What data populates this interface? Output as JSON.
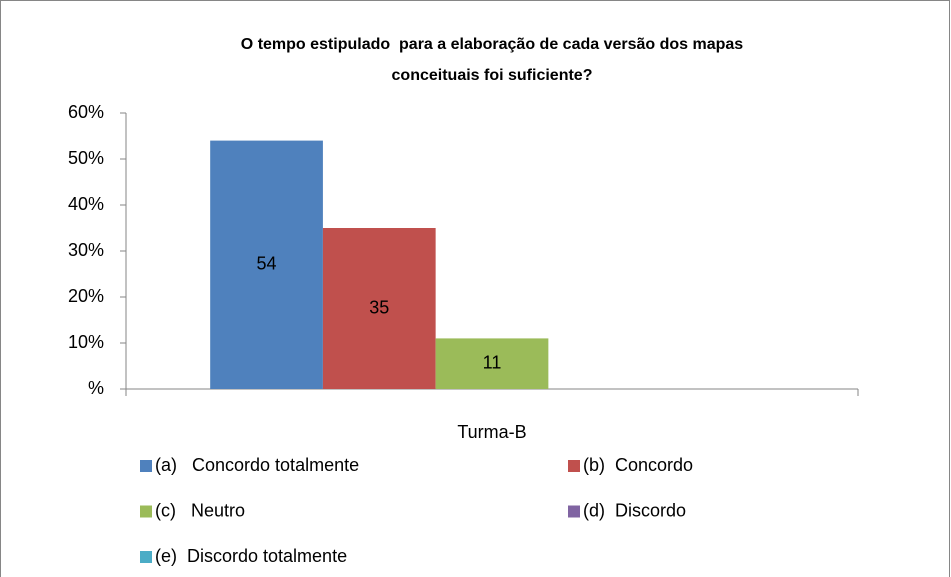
{
  "chart_data": {
    "type": "bar",
    "title": [
      "O tempo estipulado  para a elaboração de cada versão dos mapas",
      "conceituais foi suficiente?"
    ],
    "categories": [
      "Turma-B"
    ],
    "series": [
      {
        "name": "(a)   Concordo totalmente",
        "color": "#4f81bd",
        "values": [
          54
        ]
      },
      {
        "name": "(b)  Concordo",
        "color": "#c0504d",
        "values": [
          35
        ]
      },
      {
        "name": "(c)   Neutro",
        "color": "#9bbb59",
        "values": [
          11
        ]
      },
      {
        "name": "(d)  Discordo",
        "color": "#8064a2",
        "values": [
          0
        ]
      },
      {
        "name": "(e)  Discordo totalmente",
        "color": "#4bacc6",
        "values": [
          0
        ]
      }
    ],
    "ylim": [
      0,
      60
    ],
    "yticks": [
      {
        "value": 0,
        "label": "%"
      },
      {
        "value": 10,
        "label": "10%"
      },
      {
        "value": 20,
        "label": "20%"
      },
      {
        "value": 30,
        "label": "30%"
      },
      {
        "value": 40,
        "label": "40%"
      },
      {
        "value": 50,
        "label": "50%"
      },
      {
        "value": 60,
        "label": "60%"
      }
    ],
    "grid": false,
    "legend": "bottom"
  }
}
